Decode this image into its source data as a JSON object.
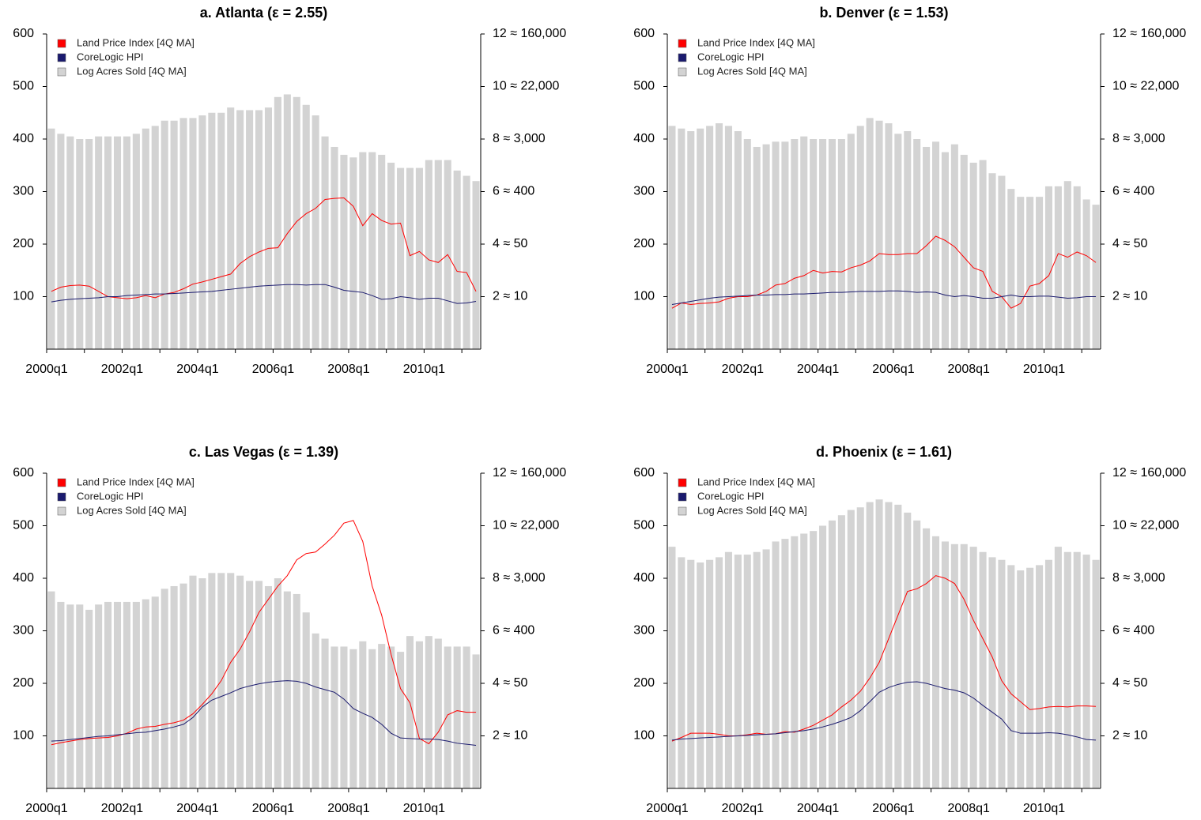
{
  "chart_data": [
    {
      "type": "combo",
      "title": "a. Atlanta (ε = 2.55)",
      "categories": [
        "2000q1",
        null,
        null,
        null,
        null,
        null,
        null,
        null,
        "2002q1",
        null,
        null,
        null,
        null,
        null,
        null,
        null,
        "2004q1",
        null,
        null,
        null,
        null,
        null,
        null,
        null,
        "2006q1",
        null,
        null,
        null,
        null,
        null,
        null,
        null,
        "2008q1",
        null,
        null,
        null,
        null,
        null,
        null,
        null,
        "2010q1",
        null,
        null,
        null,
        null,
        null
      ],
      "series": [
        {
          "name": "Land Price Index [4Q MA]",
          "color": "#ff0000",
          "kind": "line",
          "values": [
            110,
            118,
            121,
            122,
            120,
            110,
            100,
            98,
            96,
            98,
            102,
            98,
            105,
            108,
            115,
            124,
            128,
            133,
            138,
            143,
            163,
            176,
            185,
            192,
            193,
            220,
            243,
            258,
            268,
            285,
            287,
            288,
            272,
            235,
            258,
            245,
            238,
            240,
            178,
            186,
            170,
            165,
            180,
            148,
            146,
            110
          ]
        },
        {
          "name": "CoreLogic HPI",
          "color": "#1a1a6e",
          "kind": "line",
          "values": [
            90,
            93,
            95,
            96,
            97,
            98,
            100,
            100,
            102,
            103,
            104,
            105,
            105,
            106,
            107,
            108,
            109,
            110,
            112,
            114,
            116,
            118,
            120,
            121,
            122,
            123,
            123,
            122,
            123,
            123,
            118,
            112,
            110,
            108,
            102,
            95,
            96,
            100,
            98,
            95,
            97,
            97,
            92,
            87,
            88,
            91
          ]
        },
        {
          "name": "Log Acres Sold [4Q MA]",
          "color": "#d3d3d3",
          "kind": "bar",
          "axis": "y2",
          "values": [
            8.4,
            8.2,
            8.1,
            8.0,
            8.0,
            8.1,
            8.1,
            8.1,
            8.1,
            8.2,
            8.4,
            8.5,
            8.7,
            8.7,
            8.8,
            8.8,
            8.9,
            9.0,
            9.0,
            9.2,
            9.1,
            9.1,
            9.1,
            9.2,
            9.6,
            9.7,
            9.6,
            9.3,
            8.9,
            8.1,
            7.7,
            7.4,
            7.3,
            7.5,
            7.5,
            7.4,
            7.1,
            6.9,
            6.9,
            6.9,
            7.2,
            7.2,
            7.2,
            6.8,
            6.6,
            6.4
          ]
        }
      ],
      "ylim": [
        0,
        600
      ],
      "yticks": [
        100,
        200,
        300,
        400,
        500,
        600
      ],
      "y2lim": [
        0,
        12
      ],
      "y2ticks": [
        {
          "value": 2,
          "label": "2 ≈ 10"
        },
        {
          "value": 4,
          "label": "4 ≈ 50"
        },
        {
          "value": 6,
          "label": "6 ≈ 400"
        },
        {
          "value": 8,
          "label": "8 ≈ 3,000"
        },
        {
          "value": 10,
          "label": "10 ≈ 22,000"
        },
        {
          "value": 12,
          "label": "12 ≈ 160,000"
        }
      ],
      "legend": "top-left"
    },
    {
      "type": "combo",
      "title": "b. Denver (ε = 1.53)",
      "categories": [
        "2000q1",
        null,
        null,
        null,
        null,
        null,
        null,
        null,
        "2002q1",
        null,
        null,
        null,
        null,
        null,
        null,
        null,
        "2004q1",
        null,
        null,
        null,
        null,
        null,
        null,
        null,
        "2006q1",
        null,
        null,
        null,
        null,
        null,
        null,
        null,
        "2008q1",
        null,
        null,
        null,
        null,
        null,
        null,
        null,
        "2010q1",
        null,
        null,
        null,
        null,
        null
      ],
      "series": [
        {
          "name": "Land Price Index [4Q MA]",
          "color": "#ff0000",
          "kind": "line",
          "values": [
            78,
            88,
            85,
            87,
            88,
            90,
            97,
            100,
            100,
            103,
            110,
            122,
            125,
            135,
            140,
            150,
            145,
            148,
            147,
            155,
            160,
            168,
            182,
            180,
            180,
            182,
            182,
            197,
            215,
            207,
            195,
            175,
            155,
            148,
            110,
            100,
            78,
            87,
            120,
            125,
            140,
            182,
            175,
            185,
            178,
            165
          ]
        },
        {
          "name": "CoreLogic HPI",
          "color": "#1a1a6e",
          "kind": "line",
          "values": [
            85,
            88,
            91,
            94,
            97,
            99,
            100,
            101,
            102,
            103,
            103,
            104,
            104,
            105,
            105,
            106,
            107,
            108,
            108,
            109,
            110,
            110,
            110,
            111,
            111,
            110,
            108,
            109,
            108,
            103,
            100,
            102,
            100,
            97,
            97,
            100,
            103,
            100,
            100,
            101,
            101,
            99,
            97,
            98,
            100,
            100
          ]
        },
        {
          "name": "Log Acres Sold [4Q MA]",
          "color": "#d3d3d3",
          "kind": "bar",
          "axis": "y2",
          "values": [
            8.5,
            8.4,
            8.3,
            8.4,
            8.5,
            8.6,
            8.5,
            8.3,
            8.0,
            7.7,
            7.8,
            7.9,
            7.9,
            8.0,
            8.1,
            8.0,
            8.0,
            8.0,
            8.0,
            8.2,
            8.5,
            8.8,
            8.7,
            8.6,
            8.2,
            8.3,
            8.0,
            7.7,
            7.9,
            7.5,
            7.8,
            7.4,
            7.1,
            7.2,
            6.7,
            6.6,
            6.1,
            5.8,
            5.8,
            5.8,
            6.2,
            6.2,
            6.4,
            6.2,
            5.7,
            5.5
          ]
        }
      ],
      "ylim": [
        0,
        600
      ],
      "yticks": [
        100,
        200,
        300,
        400,
        500,
        600
      ],
      "y2lim": [
        0,
        12
      ],
      "y2ticks": [
        {
          "value": 2,
          "label": "2 ≈ 10"
        },
        {
          "value": 4,
          "label": "4 ≈ 50"
        },
        {
          "value": 6,
          "label": "6 ≈ 400"
        },
        {
          "value": 8,
          "label": "8 ≈ 3,000"
        },
        {
          "value": 10,
          "label": "10 ≈ 22,000"
        },
        {
          "value": 12,
          "label": "12 ≈ 160,000"
        }
      ],
      "legend": "top-left"
    },
    {
      "type": "combo",
      "title": "c. Las Vegas (ε = 1.39)",
      "categories": [
        "2000q1",
        null,
        null,
        null,
        null,
        null,
        null,
        null,
        "2002q1",
        null,
        null,
        null,
        null,
        null,
        null,
        null,
        "2004q1",
        null,
        null,
        null,
        null,
        null,
        null,
        null,
        "2006q1",
        null,
        null,
        null,
        null,
        null,
        null,
        null,
        "2008q1",
        null,
        null,
        null,
        null,
        null,
        null,
        null,
        "2010q1",
        null,
        null,
        null,
        null,
        null
      ],
      "series": [
        {
          "name": "Land Price Index [4Q MA]",
          "color": "#ff0000",
          "kind": "line",
          "values": [
            83,
            87,
            90,
            93,
            95,
            96,
            97,
            100,
            105,
            113,
            117,
            118,
            122,
            125,
            130,
            142,
            160,
            180,
            205,
            240,
            265,
            298,
            335,
            360,
            385,
            405,
            435,
            447,
            450,
            465,
            482,
            505,
            510,
            470,
            385,
            330,
            255,
            190,
            163,
            95,
            85,
            107,
            140,
            148,
            145,
            145
          ]
        },
        {
          "name": "CoreLogic HPI",
          "color": "#1a1a6e",
          "kind": "line",
          "values": [
            90,
            91,
            93,
            95,
            97,
            99,
            100,
            102,
            104,
            106,
            107,
            110,
            113,
            117,
            122,
            135,
            155,
            168,
            175,
            182,
            190,
            195,
            199,
            202,
            204,
            205,
            204,
            200,
            193,
            188,
            183,
            170,
            152,
            143,
            135,
            122,
            105,
            96,
            95,
            94,
            94,
            93,
            90,
            86,
            84,
            82
          ]
        },
        {
          "name": "Log Acres Sold [4Q MA]",
          "color": "#d3d3d3",
          "kind": "bar",
          "axis": "y2",
          "values": [
            7.5,
            7.1,
            7.0,
            7.0,
            6.8,
            7.0,
            7.1,
            7.1,
            7.1,
            7.1,
            7.2,
            7.3,
            7.6,
            7.7,
            7.8,
            8.1,
            8.0,
            8.2,
            8.2,
            8.2,
            8.1,
            7.9,
            7.9,
            7.7,
            8.0,
            7.5,
            7.4,
            6.7,
            5.9,
            5.7,
            5.4,
            5.4,
            5.3,
            5.6,
            5.3,
            5.5,
            5.4,
            5.2,
            5.8,
            5.6,
            5.8,
            5.7,
            5.4,
            5.4,
            5.4,
            5.1
          ]
        }
      ],
      "ylim": [
        0,
        600
      ],
      "yticks": [
        100,
        200,
        300,
        400,
        500,
        600
      ],
      "y2lim": [
        0,
        12
      ],
      "y2ticks": [
        {
          "value": 2,
          "label": "2 ≈ 10"
        },
        {
          "value": 4,
          "label": "4 ≈ 50"
        },
        {
          "value": 6,
          "label": "6 ≈ 400"
        },
        {
          "value": 8,
          "label": "8 ≈ 3,000"
        },
        {
          "value": 10,
          "label": "10 ≈ 22,000"
        },
        {
          "value": 12,
          "label": "12 ≈ 160,000"
        }
      ],
      "legend": "top-left"
    },
    {
      "type": "combo",
      "title": "d. Phoenix (ε = 1.61)",
      "categories": [
        "2000q1",
        null,
        null,
        null,
        null,
        null,
        null,
        null,
        "2002q1",
        null,
        null,
        null,
        null,
        null,
        null,
        null,
        "2004q1",
        null,
        null,
        null,
        null,
        null,
        null,
        null,
        "2006q1",
        null,
        null,
        null,
        null,
        null,
        null,
        null,
        "2008q1",
        null,
        null,
        null,
        null,
        null,
        null,
        null,
        "2010q1",
        null,
        null,
        null,
        null,
        null
      ],
      "series": [
        {
          "name": "Land Price Index [4Q MA]",
          "color": "#ff0000",
          "kind": "line",
          "values": [
            90,
            97,
            105,
            105,
            105,
            103,
            100,
            100,
            102,
            105,
            103,
            104,
            108,
            107,
            113,
            120,
            130,
            140,
            155,
            168,
            185,
            210,
            240,
            285,
            330,
            375,
            380,
            390,
            405,
            400,
            390,
            360,
            320,
            285,
            250,
            205,
            180,
            165,
            150,
            152,
            155,
            156,
            155,
            157,
            157,
            156
          ]
        },
        {
          "name": "CoreLogic HPI",
          "color": "#1a1a6e",
          "kind": "line",
          "values": [
            92,
            94,
            95,
            96,
            97,
            98,
            99,
            100,
            101,
            102,
            103,
            104,
            106,
            108,
            110,
            113,
            117,
            122,
            128,
            135,
            148,
            165,
            183,
            192,
            198,
            202,
            203,
            200,
            195,
            190,
            187,
            182,
            172,
            158,
            145,
            132,
            110,
            105,
            105,
            105,
            106,
            105,
            102,
            98,
            93,
            92
          ]
        },
        {
          "name": "Log Acres Sold [4Q MA]",
          "color": "#d3d3d3",
          "kind": "bar",
          "axis": "y2",
          "values": [
            9.2,
            8.8,
            8.7,
            8.6,
            8.7,
            8.8,
            9.0,
            8.9,
            8.9,
            9.0,
            9.1,
            9.4,
            9.5,
            9.6,
            9.7,
            9.8,
            10.0,
            10.2,
            10.4,
            10.6,
            10.7,
            10.9,
            11.0,
            10.9,
            10.8,
            10.5,
            10.2,
            9.9,
            9.6,
            9.4,
            9.3,
            9.3,
            9.2,
            9.0,
            8.8,
            8.7,
            8.5,
            8.3,
            8.4,
            8.5,
            8.7,
            9.2,
            9.0,
            9.0,
            8.9,
            8.7
          ]
        }
      ],
      "ylim": [
        0,
        600
      ],
      "yticks": [
        100,
        200,
        300,
        400,
        500,
        600
      ],
      "y2lim": [
        0,
        12
      ],
      "y2ticks": [
        {
          "value": 2,
          "label": "2 ≈ 10"
        },
        {
          "value": 4,
          "label": "4 ≈ 50"
        },
        {
          "value": 6,
          "label": "6 ≈ 400"
        },
        {
          "value": 8,
          "label": "8 ≈ 3,000"
        },
        {
          "value": 10,
          "label": "10 ≈ 22,000"
        },
        {
          "value": 12,
          "label": "12 ≈ 160,000"
        }
      ],
      "legend": "top-left"
    }
  ]
}
